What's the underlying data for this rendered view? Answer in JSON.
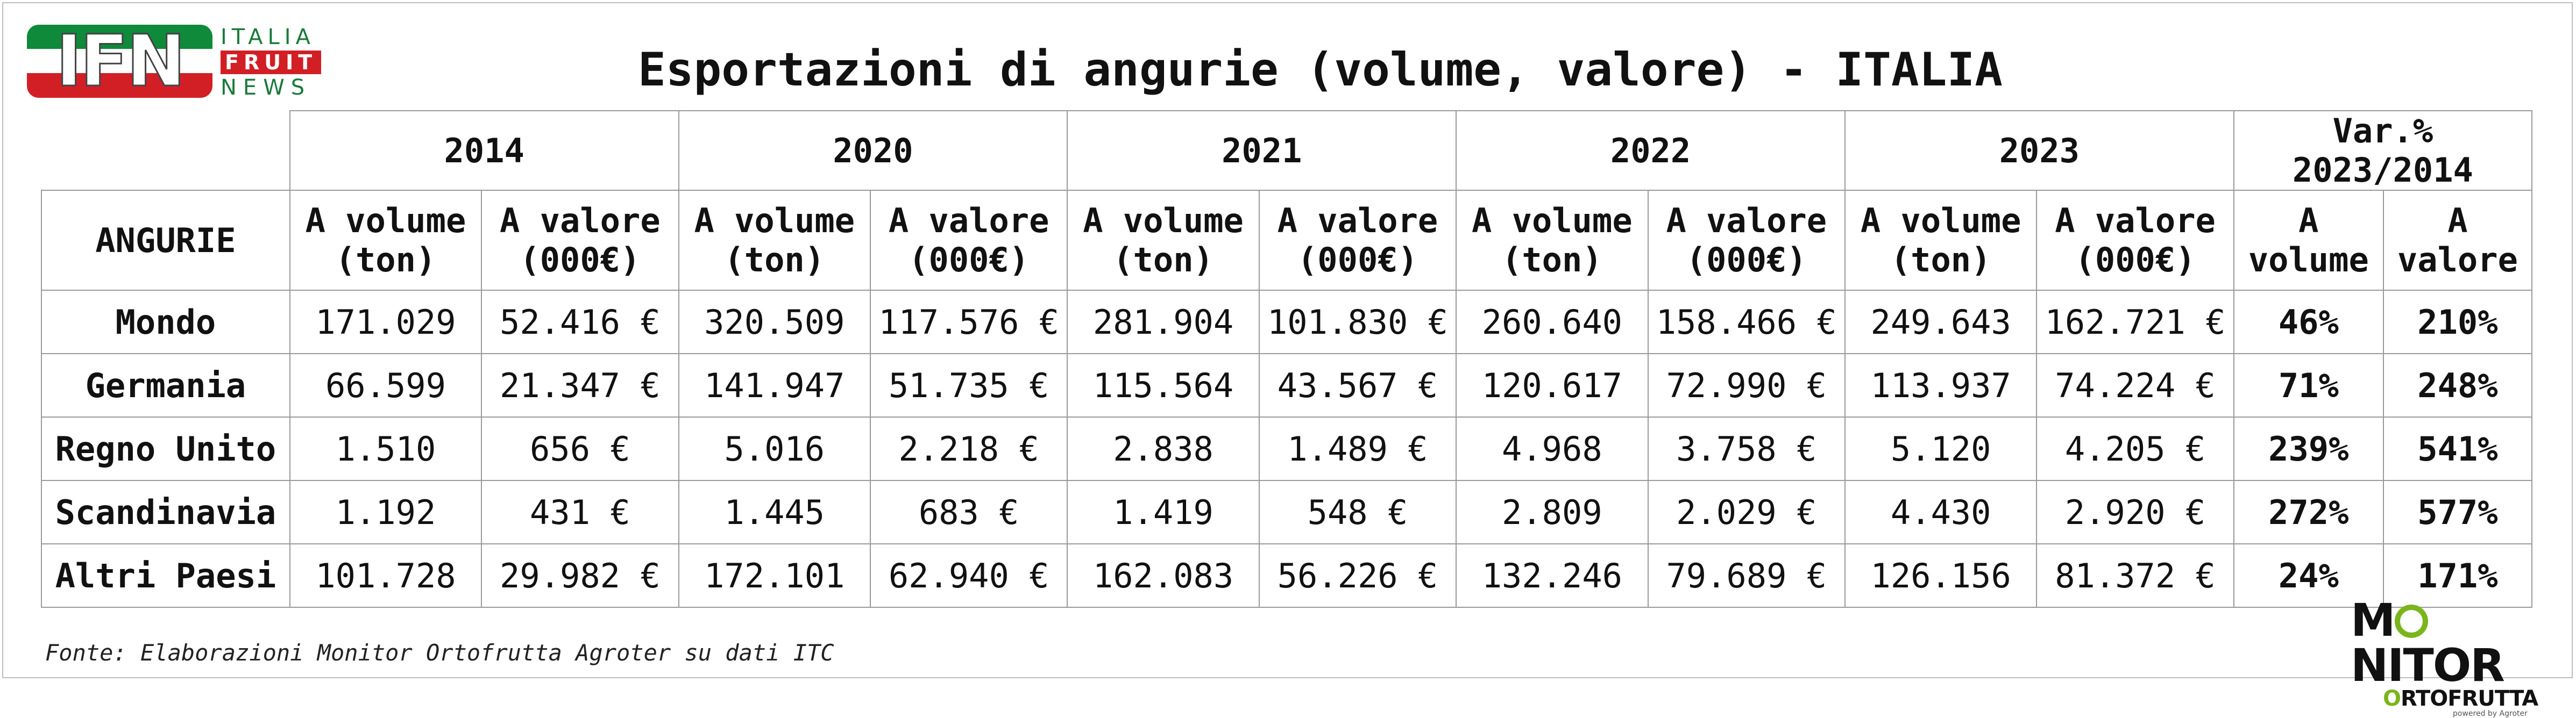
{
  "logo": {
    "ifn_letters": "IFN",
    "line1": "ITALIA",
    "line2": "FRUIT",
    "line3": "NEWS"
  },
  "title": "Esportazioni di angurie (volume, valore) - ITALIA",
  "table": {
    "row_header": "ANGURIE",
    "years": [
      "2014",
      "2020",
      "2021",
      "2022",
      "2023"
    ],
    "var_header": "Var.% 2023/2014",
    "sub_volume": [
      "A volume",
      "(ton)"
    ],
    "sub_value": [
      "A valore",
      "(000€)"
    ],
    "var_sub_volume": [
      "A",
      "volume"
    ],
    "var_sub_value": [
      "A",
      "valore"
    ],
    "rows": [
      {
        "name": "Mondo",
        "cells": [
          "171.029",
          "52.416 €",
          "320.509",
          "117.576 €",
          "281.904",
          "101.830 €",
          "260.640",
          "158.466 €",
          "249.643",
          "162.721 €"
        ],
        "var_volume": "46%",
        "var_value": "210%"
      },
      {
        "name": "Germania",
        "cells": [
          "66.599",
          "21.347 €",
          "141.947",
          "51.735 €",
          "115.564",
          "43.567 €",
          "120.617",
          "72.990 €",
          "113.937",
          "74.224 €"
        ],
        "var_volume": "71%",
        "var_value": "248%"
      },
      {
        "name": "Regno Unito",
        "cells": [
          "1.510",
          "656 €",
          "5.016",
          "2.218 €",
          "2.838",
          "1.489 €",
          "4.968",
          "3.758 €",
          "5.120",
          "4.205 €"
        ],
        "var_volume": "239%",
        "var_value": "541%"
      },
      {
        "name": "Scandinavia",
        "cells": [
          "1.192",
          "431 €",
          "1.445",
          "683 €",
          "1.419",
          "548 €",
          "2.809",
          "2.029 €",
          "4.430",
          "2.920 €"
        ],
        "var_volume": "272%",
        "var_value": "577%"
      },
      {
        "name": "Altri Paesi",
        "cells": [
          "101.728",
          "29.982 €",
          "172.101",
          "62.940 €",
          "162.083",
          "56.226 €",
          "132.246",
          "79.689 €",
          "126.156",
          "81.372 €"
        ],
        "var_volume": "24%",
        "var_value": "171%"
      }
    ]
  },
  "source": "Fonte: Elaborazioni Monitor Ortofrutta Agroter su dati ITC",
  "footer_logo": {
    "word_left": "M",
    "word_right": "NITOR",
    "sub_left": "O",
    "sub_right": "RTOFRUTTA",
    "tagline": "powered by Agroter"
  },
  "colors": {
    "ifn_green": "#0e8a3a",
    "ifn_red": "#d21f26",
    "monitor_green": "#7ab51d",
    "grid": "#9a9a9a"
  }
}
